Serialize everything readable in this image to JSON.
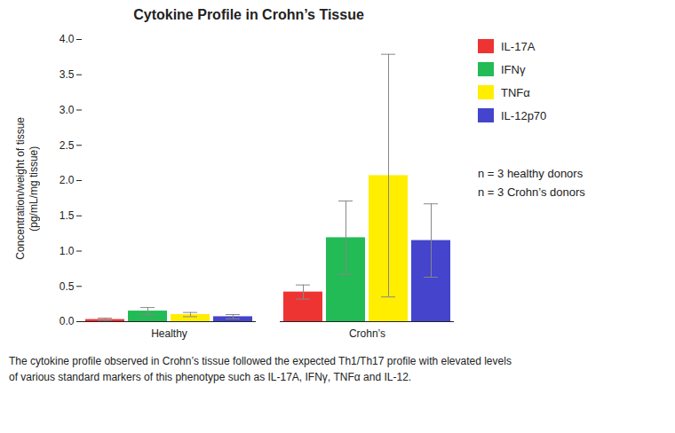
{
  "chart_data": {
    "type": "bar",
    "title": "Cytokine Profile in Crohn’s Tissue",
    "ylabel": "Concentration/weight of tissue\n(pg/mL/mg tissue)",
    "categories": [
      "Healthy",
      "Crohn’s"
    ],
    "series": [
      {
        "name": "IL-17A",
        "color": "#ee3333",
        "values": [
          0.03,
          0.42
        ],
        "errors": [
          0.02,
          0.1
        ]
      },
      {
        "name": "IFNγ",
        "color": "#22bb55",
        "values": [
          0.15,
          1.19
        ],
        "errors": [
          0.05,
          0.52
        ]
      },
      {
        "name": "TNFα",
        "color": "#ffee00",
        "values": [
          0.1,
          2.07
        ],
        "errors": [
          0.03,
          1.72
        ]
      },
      {
        "name": "IL-12p70",
        "color": "#4444cc",
        "values": [
          0.07,
          1.15
        ],
        "errors": [
          0.03,
          0.52
        ]
      }
    ],
    "ylim": [
      0,
      4.0
    ],
    "yticks": [
      {
        "value": 0.0,
        "label": "0.0"
      },
      0.5,
      {
        "value": 1.0,
        "label": "1.0"
      },
      1.5,
      {
        "value": 2.0,
        "label": "2.0"
      },
      2.5,
      {
        "value": 3.0,
        "label": "3.0"
      },
      3.5,
      {
        "value": 4.0,
        "label": "4.0"
      }
    ],
    "grid": false,
    "legend": "right",
    "annotations": [
      "n = 3 healthy donors",
      "n = 3 Crohn’s donors"
    ],
    "caption": [
      "The cytokine profile observed in Crohn’s tissue followed the expected Th1/Th17 profile with elevated levels",
      "of various standard markers of this phenotype such as IL-17A, IFNγ, TNFα and IL-12."
    ]
  }
}
